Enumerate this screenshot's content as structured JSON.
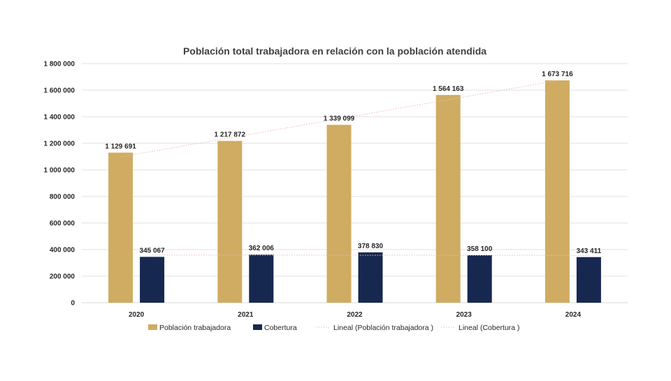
{
  "chart_data": {
    "type": "bar",
    "title": "Población total trabajadora en relación con la población atendida",
    "categories": [
      "2020",
      "2021",
      "2022",
      "2023",
      "2024"
    ],
    "series": [
      {
        "name": "Población trabajadora",
        "values": [
          1129691,
          1217872,
          1339099,
          1564163,
          1673716
        ],
        "labels": [
          "1 129 691",
          "1 217 872",
          "1 339 099",
          "1 564 163",
          "1 673 716"
        ],
        "color": "#CFAC62"
      },
      {
        "name": "Cobertura",
        "values": [
          345067,
          362006,
          378830,
          358100,
          343411
        ],
        "labels": [
          "345 067",
          "362 006",
          "378 830",
          "358 100",
          "343 411"
        ],
        "color": "#172850"
      }
    ],
    "trendlines": [
      {
        "name": "Lineal (Población trabajadora )",
        "of_series": 0,
        "color": "#F0B8B8",
        "style": "dotted"
      },
      {
        "name": "Lineal (Cobertura )",
        "of_series": 1,
        "color": "#F0B8B8",
        "style": "dotted"
      }
    ],
    "ylim": [
      0,
      1800000
    ],
    "yticks": [
      0,
      200000,
      400000,
      600000,
      800000,
      1000000,
      1200000,
      1400000,
      1600000,
      1800000
    ],
    "ytick_labels": [
      "0",
      "200 000",
      "400 000",
      "600 000",
      "800 000",
      "1 000 000",
      "1 200 000",
      "1 400 000",
      "1 600 000",
      "1 800 000"
    ],
    "grid": true,
    "legend_position": "bottom",
    "xlabel": "",
    "ylabel": ""
  }
}
